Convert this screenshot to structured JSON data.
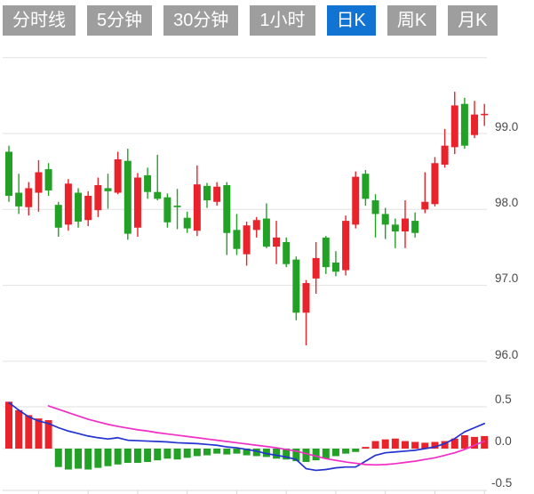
{
  "tabs": {
    "items": [
      {
        "label": "分时线",
        "active": false
      },
      {
        "label": "5分钟",
        "active": false
      },
      {
        "label": "30分钟",
        "active": false
      },
      {
        "label": "1小时",
        "active": false
      },
      {
        "label": "日K",
        "active": true
      },
      {
        "label": "周K",
        "active": false
      },
      {
        "label": "月K",
        "active": false
      }
    ]
  },
  "colors": {
    "up": "#e8232b",
    "down": "#23a126",
    "dif_line": "#2433cf",
    "dea_line": "#f12dc6",
    "grid": "#e2e2e2",
    "axis_line": "#d8d8d8",
    "axis_text": "#4a4a4a",
    "tab_bg": "#9e9e9e",
    "tab_active_bg": "#1274d2"
  },
  "price_axis": {
    "ticks": [
      {
        "label": "99.0",
        "value": 99.0
      },
      {
        "label": "98.0",
        "value": 98.0
      },
      {
        "label": "97.0",
        "value": 97.0
      },
      {
        "label": "96.0",
        "value": 96.0
      }
    ],
    "top_border_value": 100.0
  },
  "macd_axis": {
    "ticks": [
      {
        "label": "0.5",
        "value": 0.5
      },
      {
        "label": "0.0",
        "value": 0.0
      },
      {
        "label": "-0.5",
        "value": -0.5
      }
    ]
  },
  "chart_data": [
    {
      "type": "candlestick",
      "title": "日K (daily K-line), red = up / green = down (CN convention)",
      "ylim": [
        95.9,
        100.0
      ],
      "ohlc": [
        [
          98.76,
          98.84,
          98.1,
          98.18
        ],
        [
          98.22,
          98.47,
          97.94,
          98.04
        ],
        [
          98.03,
          98.36,
          97.92,
          98.28
        ],
        [
          98.22,
          98.65,
          97.97,
          98.49
        ],
        [
          98.53,
          98.61,
          98.18,
          98.25
        ],
        [
          98.06,
          98.1,
          97.64,
          97.76
        ],
        [
          97.8,
          98.4,
          97.72,
          98.34
        ],
        [
          98.22,
          98.28,
          97.76,
          97.84
        ],
        [
          97.86,
          98.24,
          97.78,
          98.18
        ],
        [
          97.99,
          98.42,
          97.9,
          98.32
        ],
        [
          98.28,
          98.47,
          98.01,
          98.24
        ],
        [
          98.22,
          98.76,
          98.2,
          98.66
        ],
        [
          98.64,
          98.8,
          97.6,
          97.68
        ],
        [
          97.76,
          98.48,
          97.64,
          98.42
        ],
        [
          98.45,
          98.55,
          98.14,
          98.23
        ],
        [
          98.23,
          98.72,
          98.12,
          98.14
        ],
        [
          98.16,
          98.21,
          97.76,
          97.83
        ],
        [
          98.05,
          98.27,
          97.74,
          98.03
        ],
        [
          97.89,
          97.97,
          97.69,
          97.75
        ],
        [
          97.72,
          98.58,
          97.65,
          98.33
        ],
        [
          98.31,
          98.35,
          98.02,
          98.12
        ],
        [
          98.1,
          98.36,
          98.05,
          98.3
        ],
        [
          98.32,
          98.36,
          97.4,
          97.69
        ],
        [
          97.73,
          97.94,
          97.4,
          97.48
        ],
        [
          97.41,
          97.84,
          97.26,
          97.79
        ],
        [
          97.73,
          97.9,
          97.63,
          97.86
        ],
        [
          97.88,
          98.08,
          97.49,
          97.51
        ],
        [
          97.51,
          97.85,
          97.28,
          97.63
        ],
        [
          97.57,
          97.63,
          97.24,
          97.28
        ],
        [
          97.34,
          97.38,
          96.54,
          96.64
        ],
        [
          96.64,
          97.07,
          96.21,
          97.03
        ],
        [
          97.09,
          97.57,
          96.89,
          97.36
        ],
        [
          97.63,
          97.65,
          97.15,
          97.24
        ],
        [
          97.3,
          97.45,
          97.12,
          97.18
        ],
        [
          97.2,
          97.92,
          97.13,
          97.85
        ],
        [
          97.8,
          98.5,
          97.75,
          98.43
        ],
        [
          98.47,
          98.52,
          98.05,
          98.14
        ],
        [
          98.12,
          98.2,
          97.63,
          97.94
        ],
        [
          97.94,
          98.02,
          97.61,
          97.8
        ],
        [
          97.8,
          97.88,
          97.49,
          97.71
        ],
        [
          97.71,
          98.12,
          97.49,
          97.88
        ],
        [
          97.85,
          97.96,
          97.63,
          97.69
        ],
        [
          98.0,
          98.49,
          97.95,
          98.1
        ],
        [
          98.07,
          98.69,
          98.04,
          98.61
        ],
        [
          98.59,
          99.06,
          98.55,
          98.84
        ],
        [
          98.82,
          99.55,
          98.73,
          99.37
        ],
        [
          99.39,
          99.47,
          98.8,
          98.84
        ],
        [
          98.98,
          99.43,
          98.94,
          99.25
        ],
        [
          99.25,
          99.39,
          99.1,
          99.26
        ]
      ]
    },
    {
      "type": "bar",
      "title": "MACD histogram with DIF/DEA lines",
      "ylim": [
        -0.55,
        0.55
      ],
      "histogram": [
        0.56,
        0.46,
        0.4,
        0.36,
        0.34,
        -0.22,
        -0.25,
        -0.24,
        -0.25,
        -0.23,
        -0.21,
        -0.19,
        -0.17,
        -0.17,
        -0.16,
        -0.14,
        -0.12,
        -0.13,
        -0.11,
        -0.09,
        -0.08,
        -0.06,
        -0.07,
        -0.06,
        -0.08,
        -0.09,
        -0.1,
        -0.12,
        -0.13,
        -0.15,
        -0.16,
        -0.14,
        -0.12,
        -0.09,
        -0.06,
        -0.04,
        0.02,
        0.09,
        0.11,
        0.12,
        0.09,
        0.08,
        0.07,
        0.08,
        0.09,
        0.12,
        0.16,
        0.14,
        0.15
      ],
      "dif": [
        0.55,
        0.46,
        0.38,
        0.33,
        0.3,
        0.25,
        0.21,
        0.18,
        0.15,
        0.13,
        0.115,
        0.13,
        0.1,
        0.095,
        0.09,
        0.085,
        0.08,
        0.07,
        0.065,
        0.06,
        0.05,
        0.04,
        0.02,
        0.01,
        -0.01,
        -0.03,
        -0.06,
        -0.08,
        -0.1,
        -0.13,
        -0.24,
        -0.26,
        -0.25,
        -0.23,
        -0.22,
        -0.22,
        -0.15,
        -0.08,
        -0.05,
        -0.04,
        -0.03,
        -0.02,
        0.0,
        0.02,
        0.06,
        0.12,
        0.2,
        0.25,
        0.3
      ],
      "dea_start_index": 5,
      "dea": [
        0.51,
        0.47,
        0.43,
        0.39,
        0.35,
        0.32,
        0.29,
        0.265,
        0.245,
        0.225,
        0.21,
        0.19,
        0.175,
        0.16,
        0.145,
        0.13,
        0.115,
        0.1,
        0.085,
        0.07,
        0.055,
        0.04,
        0.025,
        0.01,
        -0.01,
        -0.03,
        -0.06,
        -0.09,
        -0.12,
        -0.14,
        -0.16,
        -0.175,
        -0.19,
        -0.195,
        -0.19,
        -0.18,
        -0.165,
        -0.15,
        -0.13,
        -0.11,
        -0.08,
        -0.05,
        -0.01,
        0.04,
        0.09
      ],
      "xtick_indices": [
        4,
        9,
        14,
        19,
        24,
        29,
        34,
        39,
        44,
        49
      ]
    }
  ]
}
